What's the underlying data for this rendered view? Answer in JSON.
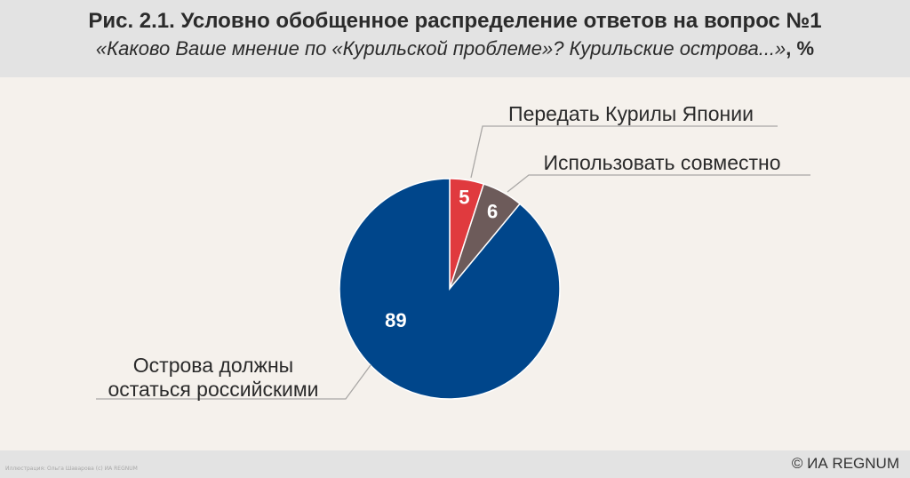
{
  "header": {
    "title": "Рис. 2.1. Условно обобщенное распределение ответов на вопрос №1",
    "subtitle_question": "«Каково Ваше мнение по «Курильской проблеме»? Курильские острова...»",
    "subtitle_unit": ", %"
  },
  "footer": {
    "credit": "Иллюстрация: Ольга Шаварова (с) ИА REGNUM",
    "brand": "© ИА REGNUM"
  },
  "chart_data": {
    "type": "pie",
    "title": "Рис. 2.1. Условно обобщенное распределение ответов на вопрос №1",
    "unit": "%",
    "slices": [
      {
        "label": "Передать Курилы Японии",
        "value": 5,
        "color": "#e03a3e"
      },
      {
        "label": "Использовать совместно",
        "value": 6,
        "color": "#6d5b5a"
      },
      {
        "label": "Острова должны остаться российскими",
        "value": 89,
        "color": "#00468b"
      }
    ],
    "start_angle": "12 o'clock, clockwise"
  }
}
